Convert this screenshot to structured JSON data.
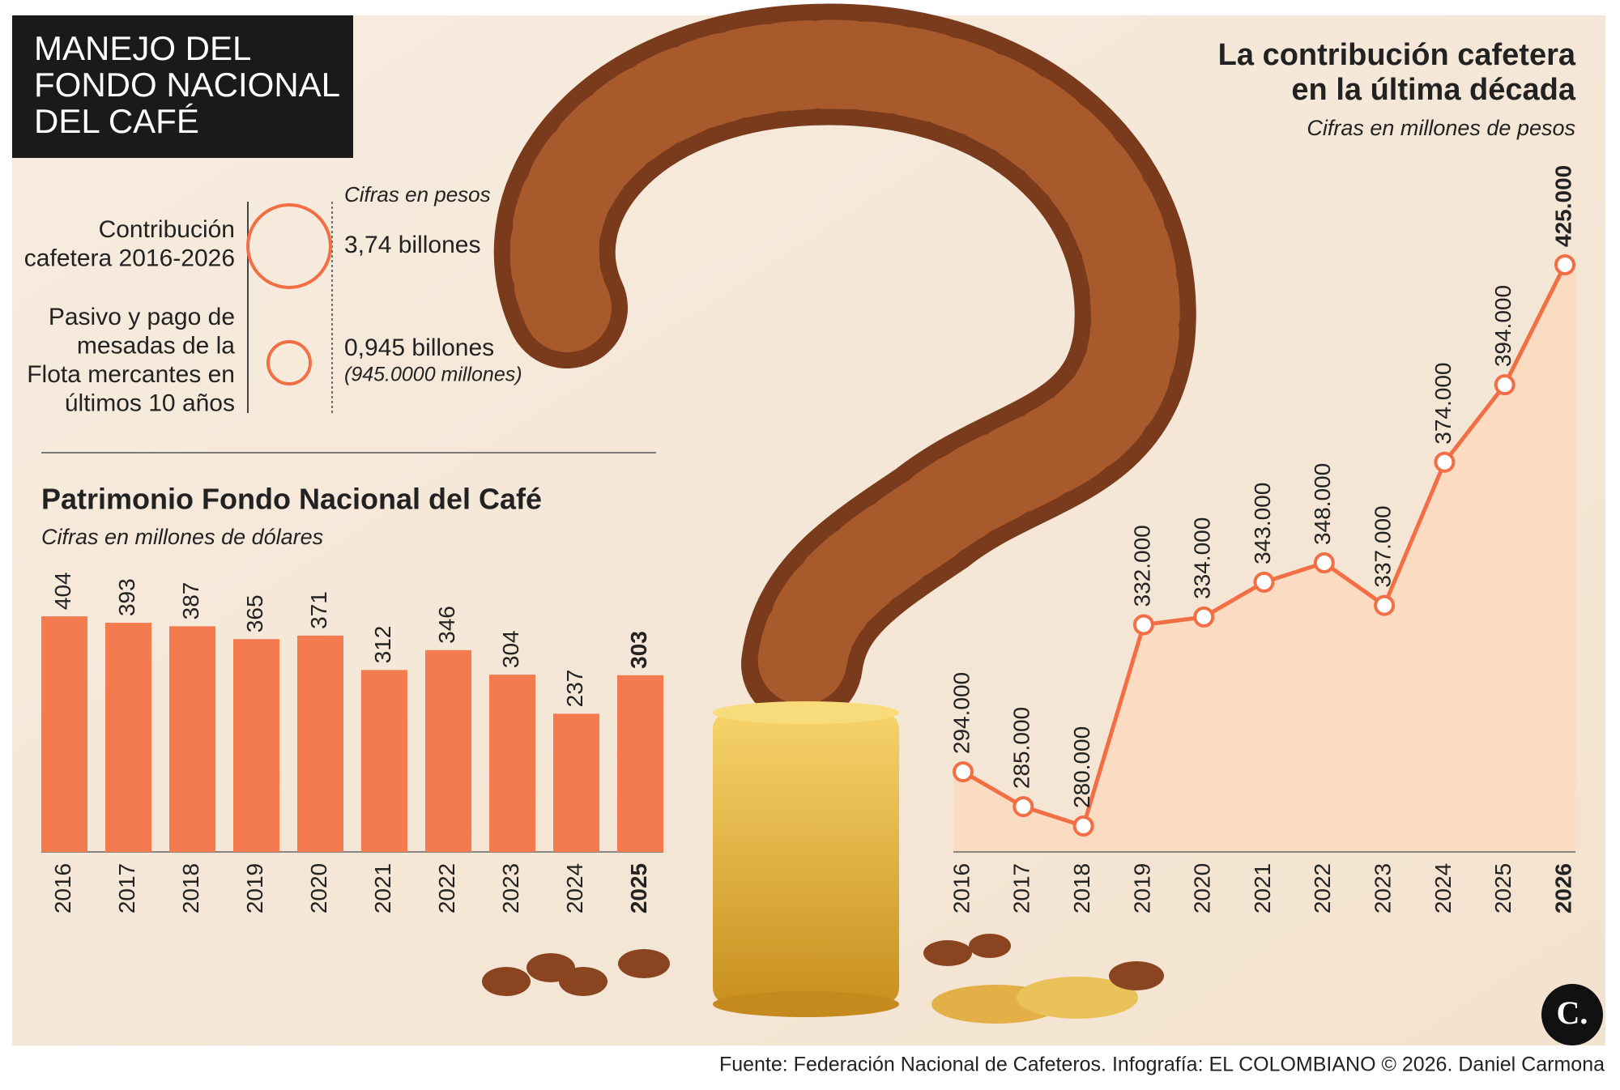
{
  "header": {
    "title_lines": [
      "MANEJO DEL",
      "FONDO NACIONAL",
      "DEL CAFÉ"
    ]
  },
  "legend": {
    "note": "Cifras en pesos",
    "items": [
      {
        "label_lines": [
          "Contribución",
          "cafetera 2016-2026"
        ],
        "amount": "3,74 billones"
      },
      {
        "label_lines": [
          "Pasivo y pago de",
          "mesadas de la",
          "Flota mercantes en",
          "últimos 10 años"
        ],
        "amount": "0,945 billones",
        "detail": "(945.0000 millones)"
      }
    ]
  },
  "chart_data": [
    {
      "type": "bar",
      "title": "Patrimonio Fondo Nacional del Café",
      "subtitle": "Cifras en millones de dólares",
      "categories": [
        "2016",
        "2017",
        "2018",
        "2019",
        "2020",
        "2021",
        "2022",
        "2023",
        "2024",
        "2025"
      ],
      "values": [
        404,
        393,
        387,
        365,
        371,
        312,
        346,
        304,
        237,
        303
      ],
      "color": "#f47a4f"
    },
    {
      "type": "line",
      "title": [
        "La contribución cafetera",
        "en la última década"
      ],
      "subtitle": "Cifras en millones de pesos",
      "categories": [
        "2016",
        "2017",
        "2018",
        "2019",
        "2020",
        "2021",
        "2022",
        "2023",
        "2024",
        "2025",
        "2026"
      ],
      "values": [
        294000,
        285000,
        280000,
        332000,
        334000,
        343000,
        348000,
        337000,
        374000,
        394000,
        425000
      ],
      "value_labels": [
        "294.000",
        "285.000",
        "280.000",
        "332.000",
        "334.000",
        "343.000",
        "348.000",
        "337.000",
        "374.000",
        "394.000",
        "425.000"
      ],
      "color": "#f26f45"
    }
  ],
  "logo": "C.",
  "source": "Fuente: Federación Nacional de Cafeteros. Infografía: EL COLOMBIANO © 2026. Daniel Carmona"
}
